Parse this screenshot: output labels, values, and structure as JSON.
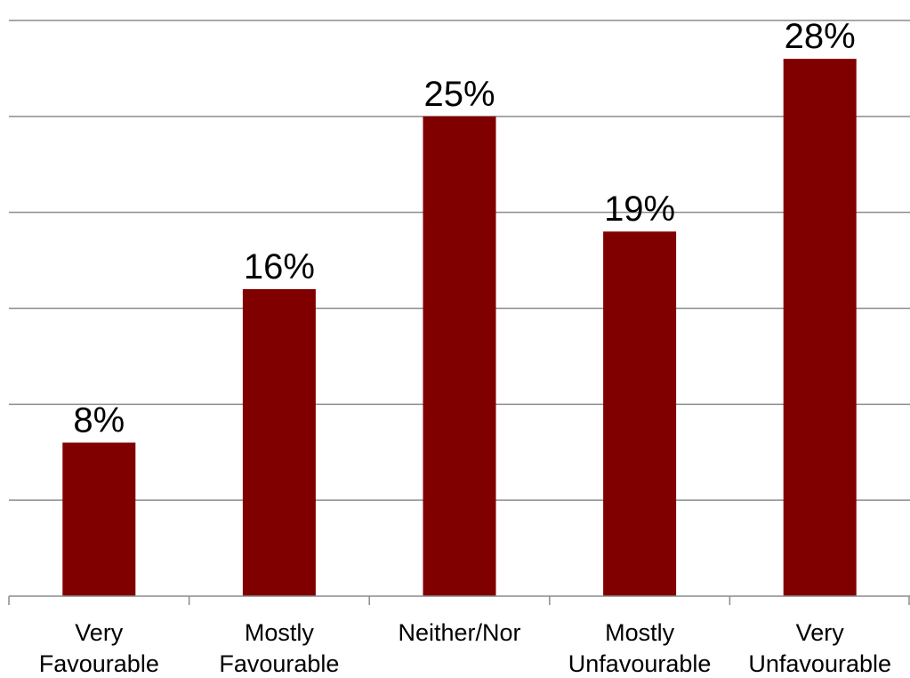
{
  "chart_data": {
    "type": "bar",
    "categories": [
      [
        "Very",
        "Favourable"
      ],
      [
        "Mostly",
        "Favourable"
      ],
      [
        "Neither/Nor"
      ],
      [
        "Mostly",
        "Unfavourable"
      ],
      [
        "Very",
        "Unfavourable"
      ]
    ],
    "values": [
      8,
      16,
      25,
      19,
      28
    ],
    "data_labels": [
      "8%",
      "16%",
      "25%",
      "19%",
      "28%"
    ],
    "ylim": [
      0,
      30
    ],
    "ytick_step": 5,
    "y_axis_labels_visible": false,
    "grid": true,
    "legend": "none",
    "colors": {
      "bar": "#800000",
      "grid": "#8c8c8c",
      "text": "#000000"
    }
  }
}
